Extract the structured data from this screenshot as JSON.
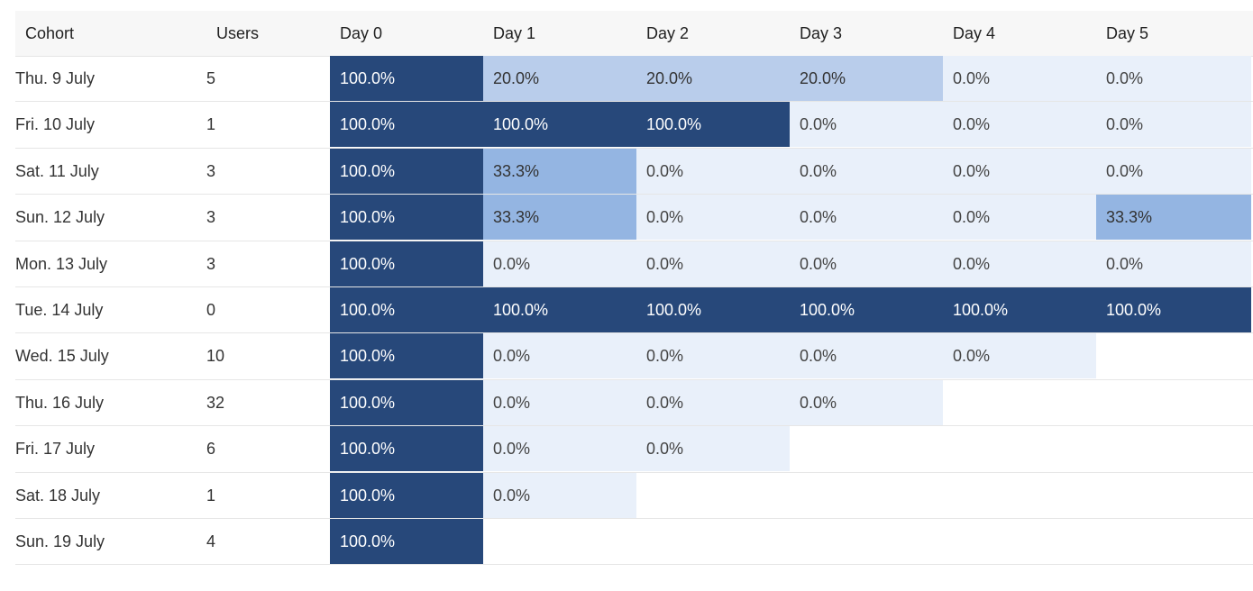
{
  "table": {
    "headers": [
      "Cohort",
      "Users",
      "Day 0",
      "Day 1",
      "Day 2",
      "Day 3",
      "Day 4",
      "Day 5"
    ],
    "rows": [
      [
        "Thu. 9 July",
        "5",
        "100.0%",
        "20.0%",
        "20.0%",
        "20.0%",
        "0.0%",
        "0.0%"
      ],
      [
        "Fri. 10 July",
        "1",
        "100.0%",
        "100.0%",
        "100.0%",
        "0.0%",
        "0.0%",
        "0.0%"
      ],
      [
        "Sat. 11 July",
        "3",
        "100.0%",
        "33.3%",
        "0.0%",
        "0.0%",
        "0.0%",
        "0.0%"
      ],
      [
        "Sun. 12 July",
        "3",
        "100.0%",
        "33.3%",
        "0.0%",
        "0.0%",
        "0.0%",
        "33.3%"
      ],
      [
        "Mon. 13 July",
        "3",
        "100.0%",
        "0.0%",
        "0.0%",
        "0.0%",
        "0.0%",
        "0.0%"
      ],
      [
        "Tue. 14 July",
        "0",
        "100.0%",
        "100.0%",
        "100.0%",
        "100.0%",
        "100.0%",
        "100.0%"
      ],
      [
        "Wed. 15 July",
        "10",
        "100.0%",
        "0.0%",
        "0.0%",
        "0.0%",
        "0.0%"
      ],
      [
        "Thu. 16 July",
        "32",
        "100.0%",
        "0.0%",
        "0.0%",
        "0.0%"
      ],
      [
        "Fri. 17 July",
        "6",
        "100.0%",
        "0.0%",
        "0.0%"
      ],
      [
        "Sat. 18 July",
        "1",
        "100.0%",
        "0.0%"
      ],
      [
        "Sun. 19 July",
        "4",
        "100.0%"
      ]
    ]
  }
}
